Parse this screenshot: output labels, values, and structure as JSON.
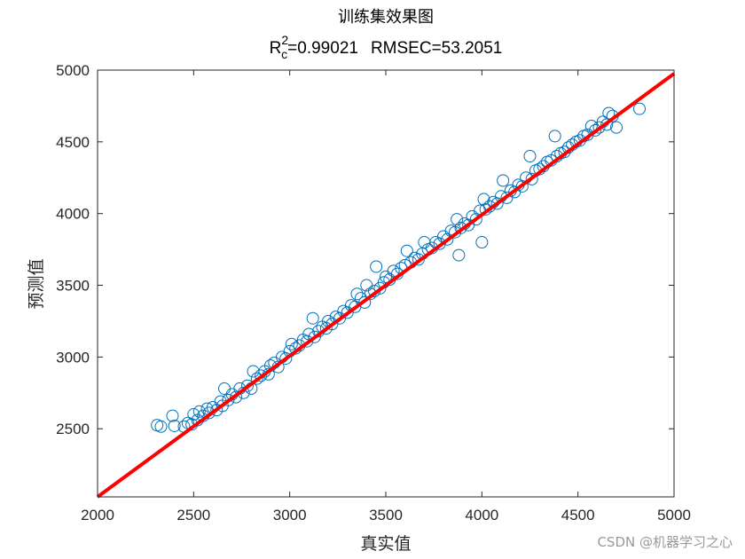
{
  "chart_data": {
    "type": "scatter",
    "title": "训练集效果图",
    "subtitle": {
      "r_label": "R",
      "r_sub": "c",
      "r_sup": "2",
      "r_value": "=0.99021",
      "rmsec": "RMSEC=53.2051"
    },
    "xlabel": "真实值",
    "ylabel": "预测值",
    "xlim": [
      2000,
      5000
    ],
    "ylim": [
      2025,
      5000
    ],
    "xticks": [
      "2000",
      "2500",
      "3000",
      "3500",
      "4000",
      "4500",
      "5000"
    ],
    "yticks": [
      "2500",
      "3000",
      "3500",
      "4000",
      "4500",
      "5000"
    ],
    "grid": false,
    "marker_color": "#0072BD",
    "line_color": "#FF0000",
    "fit_line": [
      [
        2000,
        2025
      ],
      [
        5000,
        4975
      ]
    ],
    "points": [
      [
        2310,
        2525
      ],
      [
        2330,
        2515
      ],
      [
        2390,
        2590
      ],
      [
        2400,
        2520
      ],
      [
        2450,
        2515
      ],
      [
        2470,
        2540
      ],
      [
        2490,
        2530
      ],
      [
        2500,
        2600
      ],
      [
        2520,
        2560
      ],
      [
        2530,
        2620
      ],
      [
        2550,
        2590
      ],
      [
        2570,
        2640
      ],
      [
        2580,
        2610
      ],
      [
        2600,
        2650
      ],
      [
        2620,
        2630
      ],
      [
        2640,
        2690
      ],
      [
        2650,
        2660
      ],
      [
        2660,
        2780
      ],
      [
        2680,
        2700
      ],
      [
        2700,
        2740
      ],
      [
        2720,
        2720
      ],
      [
        2740,
        2780
      ],
      [
        2760,
        2750
      ],
      [
        2780,
        2800
      ],
      [
        2800,
        2780
      ],
      [
        2810,
        2900
      ],
      [
        2830,
        2850
      ],
      [
        2850,
        2870
      ],
      [
        2870,
        2900
      ],
      [
        2890,
        2880
      ],
      [
        2900,
        2940
      ],
      [
        2920,
        2960
      ],
      [
        2940,
        2930
      ],
      [
        2960,
        3000
      ],
      [
        2980,
        2990
      ],
      [
        3000,
        3040
      ],
      [
        3010,
        3090
      ],
      [
        3030,
        3060
      ],
      [
        3050,
        3080
      ],
      [
        3070,
        3120
      ],
      [
        3090,
        3110
      ],
      [
        3100,
        3160
      ],
      [
        3120,
        3270
      ],
      [
        3130,
        3140
      ],
      [
        3150,
        3180
      ],
      [
        3170,
        3210
      ],
      [
        3190,
        3200
      ],
      [
        3200,
        3250
      ],
      [
        3220,
        3230
      ],
      [
        3240,
        3280
      ],
      [
        3260,
        3270
      ],
      [
        3280,
        3320
      ],
      [
        3300,
        3310
      ],
      [
        3320,
        3360
      ],
      [
        3340,
        3350
      ],
      [
        3350,
        3440
      ],
      [
        3370,
        3410
      ],
      [
        3390,
        3380
      ],
      [
        3400,
        3500
      ],
      [
        3420,
        3440
      ],
      [
        3440,
        3460
      ],
      [
        3450,
        3630
      ],
      [
        3470,
        3480
      ],
      [
        3490,
        3520
      ],
      [
        3500,
        3560
      ],
      [
        3520,
        3540
      ],
      [
        3540,
        3600
      ],
      [
        3560,
        3580
      ],
      [
        3580,
        3620
      ],
      [
        3600,
        3640
      ],
      [
        3610,
        3740
      ],
      [
        3630,
        3660
      ],
      [
        3650,
        3690
      ],
      [
        3670,
        3680
      ],
      [
        3690,
        3720
      ],
      [
        3700,
        3800
      ],
      [
        3720,
        3750
      ],
      [
        3740,
        3760
      ],
      [
        3760,
        3800
      ],
      [
        3780,
        3790
      ],
      [
        3800,
        3840
      ],
      [
        3820,
        3820
      ],
      [
        3840,
        3880
      ],
      [
        3860,
        3870
      ],
      [
        3870,
        3960
      ],
      [
        3880,
        3710
      ],
      [
        3890,
        3900
      ],
      [
        3910,
        3930
      ],
      [
        3930,
        3920
      ],
      [
        3950,
        3980
      ],
      [
        3970,
        3960
      ],
      [
        3990,
        4020
      ],
      [
        4000,
        3800
      ],
      [
        4010,
        4100
      ],
      [
        4020,
        4030
      ],
      [
        4040,
        4050
      ],
      [
        4060,
        4080
      ],
      [
        4080,
        4070
      ],
      [
        4100,
        4120
      ],
      [
        4110,
        4230
      ],
      [
        4130,
        4110
      ],
      [
        4150,
        4160
      ],
      [
        4170,
        4150
      ],
      [
        4190,
        4200
      ],
      [
        4210,
        4190
      ],
      [
        4230,
        4250
      ],
      [
        4250,
        4400
      ],
      [
        4260,
        4240
      ],
      [
        4280,
        4300
      ],
      [
        4300,
        4310
      ],
      [
        4320,
        4330
      ],
      [
        4340,
        4360
      ],
      [
        4360,
        4370
      ],
      [
        4380,
        4540
      ],
      [
        4390,
        4400
      ],
      [
        4410,
        4420
      ],
      [
        4430,
        4430
      ],
      [
        4450,
        4460
      ],
      [
        4470,
        4480
      ],
      [
        4490,
        4500
      ],
      [
        4510,
        4510
      ],
      [
        4530,
        4540
      ],
      [
        4550,
        4550
      ],
      [
        4570,
        4610
      ],
      [
        4590,
        4580
      ],
      [
        4610,
        4600
      ],
      [
        4630,
        4640
      ],
      [
        4650,
        4620
      ],
      [
        4660,
        4700
      ],
      [
        4680,
        4680
      ],
      [
        4700,
        4600
      ],
      [
        4820,
        4730
      ]
    ]
  },
  "watermark": "CSDN @机器学习之心"
}
